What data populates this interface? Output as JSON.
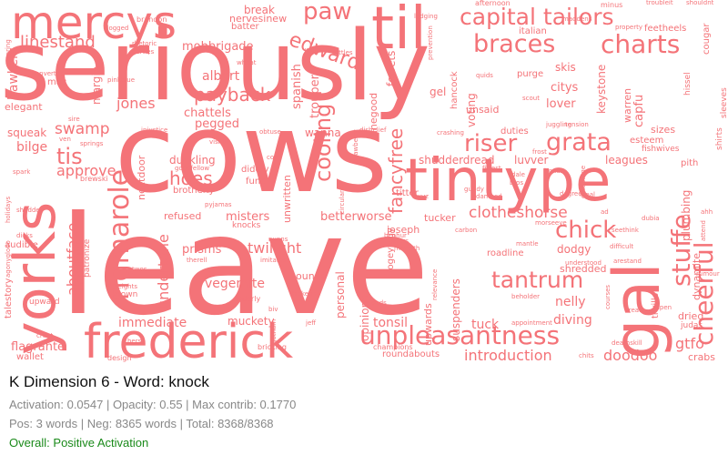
{
  "colors": {
    "word": "#f47378",
    "status": "#1a8a1a"
  },
  "cloud": {
    "words": [
      "seriously",
      "cows",
      "leave",
      "frederick",
      "tintype",
      "yorks",
      "gal",
      "til",
      "mercys",
      "capital tailors",
      "charts",
      "braces",
      "unpleasantness",
      "tantrum",
      "rigmarole",
      "stuffe",
      "cheerful",
      "chick",
      "riser",
      "grata",
      "fancyfree",
      "edward",
      "cooling",
      "paw",
      "linestand",
      "payback",
      "jones",
      "swamp",
      "hoes",
      "tis",
      "approve",
      "aboutface",
      "undertone",
      "twilight",
      "vegemite",
      "prisms",
      "misters",
      "betterworse",
      "clotheshorse",
      "introduction",
      "doodoo",
      "gtfo",
      "crabs",
      "diving",
      "nelly",
      "tonsil",
      "tuck",
      "immediate",
      "muckety",
      "flagrante",
      "wallet",
      "talestory",
      "audible",
      "bilge",
      "squeak",
      "elegant",
      "hawkers",
      "margin",
      "albert",
      "chattels",
      "pegged",
      "spanish",
      "trouper",
      "mobbrigade",
      "break",
      "batter",
      "nervesinew",
      "ferrets",
      "voting",
      "unsaid",
      "lover",
      "citys",
      "skis",
      "purge",
      "gel",
      "hancock",
      "italian",
      "keystone",
      "warren",
      "capfu",
      "plumbing",
      "dynamite",
      "thrills",
      "dodgy",
      "shredded",
      "ounce",
      "personal",
      "opinions",
      "suspenders",
      "upwards",
      "roadline",
      "joseph",
      "unwritten",
      "refused",
      "knocks",
      "duckling",
      "fund",
      "diddly",
      "brotherly",
      "nextdoor",
      "impartial",
      "wanna",
      "shudderdread",
      "luvver",
      "leagues",
      "sizes",
      "esteem",
      "pith",
      "dried",
      "judas",
      "duties",
      "fogeyfogy",
      "titter",
      "tucker",
      "finegood",
      "roundabouts",
      "champions",
      "bricking",
      "upward",
      "gown",
      "design",
      "heights",
      "patronize",
      "brandon",
      "quids",
      "lodging",
      "afternoon",
      "minus",
      "troubleit",
      "shouldnt",
      "feetheels",
      "cougar",
      "property",
      "fishwives",
      "shirts",
      "sleeves",
      "maddens",
      "dubia",
      "bonus",
      "fittest",
      "dale",
      "frost",
      "crashing",
      "visitor",
      "injustice",
      "obtuse",
      "disbelief",
      "hissel",
      "entourage",
      "ideal",
      "scout",
      "juggling",
      "tension",
      "degree",
      "mantle",
      "beholder",
      "appointment",
      "prevention",
      "dogged",
      "write",
      "rattles",
      "wheat",
      "pinkblue",
      "sickie",
      "converted",
      "mac",
      "rhetoric",
      "parties",
      "spring",
      "spark",
      "brewski",
      "holidays",
      "ven",
      "sire",
      "springs",
      "goodfellow",
      "pyjamas",
      "cox",
      "strawberry",
      "circulars",
      "xyz",
      "gundy",
      "damned",
      "bros",
      "dicks",
      "shudder",
      "cruet",
      "hers",
      "twos",
      "aspen",
      "tread",
      "arestand",
      "understood",
      "difficult",
      "seethink",
      "courses",
      "morseeye",
      "benhur",
      "jeers",
      "makeith",
      "carbon",
      "nunns",
      "therell",
      "orderly",
      "thickens",
      "imitates",
      "biv",
      "jeff",
      "dads",
      "gotham",
      "relevance",
      "chits",
      "ad",
      "ahh",
      "deathskill",
      "attend",
      "rumour",
      "agonyglooo"
    ]
  },
  "panel": {
    "title": "K Dimension 6 - Word: knock",
    "metrics": "Activation: 0.0547 | Opacity: 0.55 | Max contrib: 0.1770",
    "counts": "Pos: 3 words | Neg: 8365 words | Total: 8368/8368",
    "status": "Overall: Positive Activation"
  }
}
